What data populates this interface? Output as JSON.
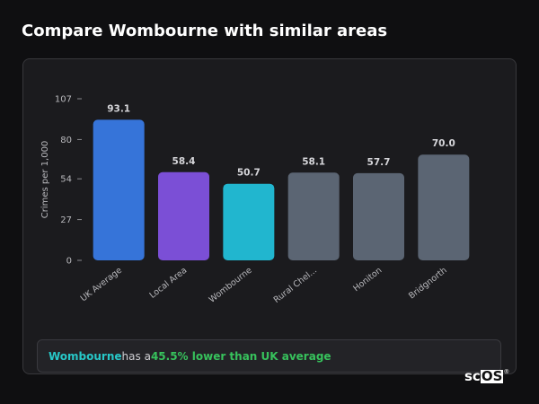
{
  "page": {
    "title": "Compare Wombourne with similar areas"
  },
  "chart_data": {
    "type": "bar",
    "ylabel": "Crimes per 1,000",
    "xlabel": "",
    "ylim": [
      0,
      107
    ],
    "yticks": [
      0,
      27,
      54,
      80,
      107
    ],
    "categories": [
      "UK Average",
      "Local Area",
      "Wombourne",
      "Rural Chel...",
      "Honiton",
      "Bridgnorth"
    ],
    "values": [
      93.1,
      58.4,
      50.7,
      58.1,
      57.7,
      70.0
    ],
    "value_labels": [
      "93.1",
      "58.4",
      "50.7",
      "58.1",
      "57.7",
      "70.0"
    ],
    "colors": [
      "#3674d9",
      "#7b4fd6",
      "#21b6cf",
      "#5b6573",
      "#5b6573",
      "#5b6573"
    ]
  },
  "callout": {
    "area": "Wombourne",
    "middle": " has a ",
    "highlight": "45.5% lower than UK average"
  },
  "brand": {
    "prefix": "sc",
    "boxed": "OS",
    "mark": "®"
  }
}
